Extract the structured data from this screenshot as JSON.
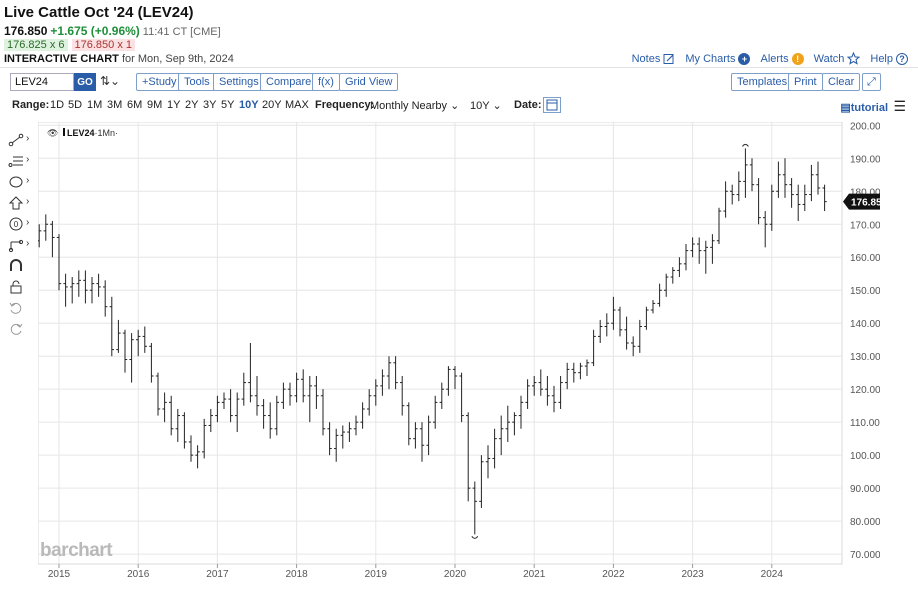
{
  "header": {
    "title": "Live Cattle Oct '24 (LEV24)",
    "last": "176.850",
    "change": "+1.675 (+0.96%)",
    "time": "11:41 CT [CME]",
    "bid": "176.825 x 6",
    "ask": "176.850 x 1",
    "interactive_label": "INTERACTIVE CHART",
    "interactive_for": "for Mon, Sep 9th, 2024"
  },
  "links": {
    "notes": "Notes",
    "mycharts": "My Charts",
    "alerts": "Alerts",
    "watch": "Watch",
    "help": "Help"
  },
  "toolbar": {
    "symbol": "LEV24",
    "go": "GO",
    "study": "+Study",
    "tools": "Tools",
    "settings": "Settings",
    "compare": "Compare",
    "fx": "f(x)",
    "gridview": "Grid View",
    "templates": "Templates",
    "print": "Print",
    "clear": "Clear"
  },
  "rangebar": {
    "range_label": "Range:",
    "ranges": [
      "1D",
      "5D",
      "1M",
      "3M",
      "6M",
      "9M",
      "1Y",
      "2Y",
      "3Y",
      "5Y",
      "10Y",
      "20Y",
      "MAX"
    ],
    "active_range": "10Y",
    "frequency_label": "Frequency:",
    "frequency_value": "Monthly Nearby",
    "period_value": "10Y",
    "date_label": "Date:",
    "tutorial": "tutorial"
  },
  "legend": {
    "symbol": "LEV24",
    "interval": "1Mn"
  },
  "watermark": "barchart",
  "colors": {
    "accent": "#2a5da8",
    "up": "#1f8f3a",
    "down": "#cc3333",
    "bars": "#222222",
    "grid": "#e6e6e6"
  },
  "chart_data": {
    "type": "ohlc",
    "title": "Live Cattle Oct '24 (LEV24)",
    "interval": "monthly",
    "x_tick_labels": [
      "2015",
      "2016",
      "2017",
      "2018",
      "2019",
      "2020",
      "2021",
      "2022",
      "2023",
      "2024"
    ],
    "y_tick_labels": [
      "70.000",
      "80.000",
      "90.000",
      "100.000",
      "110.000",
      "120.000",
      "130.000",
      "140.000",
      "150.000",
      "160.000",
      "170.000",
      "180.000",
      "190.000",
      "200.000"
    ],
    "ylim": [
      67,
      201
    ],
    "start": "2014-10",
    "last_price": 176.85,
    "last_price_label": "176.850",
    "monthly": [
      {
        "m": "2014-10",
        "o": 165,
        "h": 170,
        "l": 163,
        "c": 168
      },
      {
        "m": "2014-11",
        "o": 168,
        "h": 173,
        "l": 165,
        "c": 170
      },
      {
        "m": "2014-12",
        "o": 170,
        "h": 171,
        "l": 160,
        "c": 166
      },
      {
        "m": "2015-01",
        "o": 166,
        "h": 167,
        "l": 150,
        "c": 152
      },
      {
        "m": "2015-02",
        "o": 152,
        "h": 155,
        "l": 145,
        "c": 151
      },
      {
        "m": "2015-03",
        "o": 151,
        "h": 154,
        "l": 146,
        "c": 152
      },
      {
        "m": "2015-04",
        "o": 152,
        "h": 156,
        "l": 148,
        "c": 153
      },
      {
        "m": "2015-05",
        "o": 153,
        "h": 156,
        "l": 146,
        "c": 150
      },
      {
        "m": "2015-06",
        "o": 150,
        "h": 154,
        "l": 146,
        "c": 152
      },
      {
        "m": "2015-07",
        "o": 152,
        "h": 155,
        "l": 148,
        "c": 151
      },
      {
        "m": "2015-08",
        "o": 151,
        "h": 153,
        "l": 142,
        "c": 145
      },
      {
        "m": "2015-09",
        "o": 145,
        "h": 148,
        "l": 130,
        "c": 132
      },
      {
        "m": "2015-10",
        "o": 132,
        "h": 141,
        "l": 131,
        "c": 137
      },
      {
        "m": "2015-11",
        "o": 137,
        "h": 138,
        "l": 125,
        "c": 129
      },
      {
        "m": "2015-12",
        "o": 129,
        "h": 137,
        "l": 122,
        "c": 135
      },
      {
        "m": "2016-01",
        "o": 135,
        "h": 138,
        "l": 130,
        "c": 136
      },
      {
        "m": "2016-02",
        "o": 136,
        "h": 139,
        "l": 131,
        "c": 133
      },
      {
        "m": "2016-03",
        "o": 133,
        "h": 134,
        "l": 122,
        "c": 124
      },
      {
        "m": "2016-04",
        "o": 124,
        "h": 125,
        "l": 112,
        "c": 114
      },
      {
        "m": "2016-05",
        "o": 114,
        "h": 119,
        "l": 110,
        "c": 116
      },
      {
        "m": "2016-06",
        "o": 116,
        "h": 118,
        "l": 106,
        "c": 108
      },
      {
        "m": "2016-07",
        "o": 108,
        "h": 114,
        "l": 104,
        "c": 112
      },
      {
        "m": "2016-08",
        "o": 112,
        "h": 113,
        "l": 102,
        "c": 104
      },
      {
        "m": "2016-09",
        "o": 104,
        "h": 106,
        "l": 98,
        "c": 100
      },
      {
        "m": "2016-10",
        "o": 100,
        "h": 103,
        "l": 96,
        "c": 101
      },
      {
        "m": "2016-11",
        "o": 101,
        "h": 111,
        "l": 99,
        "c": 109
      },
      {
        "m": "2016-12",
        "o": 109,
        "h": 114,
        "l": 107,
        "c": 112
      },
      {
        "m": "2017-01",
        "o": 112,
        "h": 118,
        "l": 110,
        "c": 116
      },
      {
        "m": "2017-02",
        "o": 116,
        "h": 119,
        "l": 114,
        "c": 117
      },
      {
        "m": "2017-03",
        "o": 117,
        "h": 120,
        "l": 110,
        "c": 112
      },
      {
        "m": "2017-04",
        "o": 112,
        "h": 119,
        "l": 107,
        "c": 117
      },
      {
        "m": "2017-05",
        "o": 117,
        "h": 125,
        "l": 115,
        "c": 122
      },
      {
        "m": "2017-06",
        "o": 122,
        "h": 134,
        "l": 116,
        "c": 118
      },
      {
        "m": "2017-07",
        "o": 118,
        "h": 124,
        "l": 112,
        "c": 115
      },
      {
        "m": "2017-08",
        "o": 115,
        "h": 117,
        "l": 108,
        "c": 112
      },
      {
        "m": "2017-09",
        "o": 112,
        "h": 116,
        "l": 105,
        "c": 108
      },
      {
        "m": "2017-10",
        "o": 108,
        "h": 118,
        "l": 106,
        "c": 116
      },
      {
        "m": "2017-11",
        "o": 116,
        "h": 122,
        "l": 114,
        "c": 120
      },
      {
        "m": "2017-12",
        "o": 120,
        "h": 122,
        "l": 115,
        "c": 118
      },
      {
        "m": "2018-01",
        "o": 118,
        "h": 125,
        "l": 116,
        "c": 123
      },
      {
        "m": "2018-02",
        "o": 123,
        "h": 126,
        "l": 116,
        "c": 118
      },
      {
        "m": "2018-03",
        "o": 118,
        "h": 124,
        "l": 110,
        "c": 121
      },
      {
        "m": "2018-04",
        "o": 121,
        "h": 124,
        "l": 114,
        "c": 118
      },
      {
        "m": "2018-05",
        "o": 118,
        "h": 120,
        "l": 106,
        "c": 108
      },
      {
        "m": "2018-06",
        "o": 108,
        "h": 110,
        "l": 100,
        "c": 102
      },
      {
        "m": "2018-07",
        "o": 102,
        "h": 108,
        "l": 98,
        "c": 106
      },
      {
        "m": "2018-08",
        "o": 106,
        "h": 109,
        "l": 102,
        "c": 107
      },
      {
        "m": "2018-09",
        "o": 107,
        "h": 110,
        "l": 104,
        "c": 108
      },
      {
        "m": "2018-10",
        "o": 108,
        "h": 112,
        "l": 106,
        "c": 110
      },
      {
        "m": "2018-11",
        "o": 110,
        "h": 116,
        "l": 108,
        "c": 114
      },
      {
        "m": "2018-12",
        "o": 114,
        "h": 120,
        "l": 112,
        "c": 118
      },
      {
        "m": "2019-01",
        "o": 118,
        "h": 123,
        "l": 115,
        "c": 121
      },
      {
        "m": "2019-02",
        "o": 121,
        "h": 126,
        "l": 118,
        "c": 124
      },
      {
        "m": "2019-03",
        "o": 124,
        "h": 130,
        "l": 120,
        "c": 128
      },
      {
        "m": "2019-04",
        "o": 128,
        "h": 130,
        "l": 120,
        "c": 122
      },
      {
        "m": "2019-05",
        "o": 122,
        "h": 124,
        "l": 112,
        "c": 115
      },
      {
        "m": "2019-06",
        "o": 115,
        "h": 116,
        "l": 103,
        "c": 105
      },
      {
        "m": "2019-07",
        "o": 105,
        "h": 110,
        "l": 102,
        "c": 108
      },
      {
        "m": "2019-08",
        "o": 108,
        "h": 110,
        "l": 98,
        "c": 103
      },
      {
        "m": "2019-09",
        "o": 103,
        "h": 112,
        "l": 100,
        "c": 110
      },
      {
        "m": "2019-10",
        "o": 110,
        "h": 118,
        "l": 108,
        "c": 116
      },
      {
        "m": "2019-11",
        "o": 116,
        "h": 122,
        "l": 114,
        "c": 120
      },
      {
        "m": "2019-12",
        "o": 120,
        "h": 127,
        "l": 118,
        "c": 126
      },
      {
        "m": "2020-01",
        "o": 126,
        "h": 127,
        "l": 120,
        "c": 124
      },
      {
        "m": "2020-02",
        "o": 124,
        "h": 125,
        "l": 110,
        "c": 112
      },
      {
        "m": "2020-03",
        "o": 112,
        "h": 113,
        "l": 86,
        "c": 90
      },
      {
        "m": "2020-04",
        "o": 90,
        "h": 92,
        "l": 76,
        "c": 86
      },
      {
        "m": "2020-05",
        "o": 86,
        "h": 100,
        "l": 84,
        "c": 98
      },
      {
        "m": "2020-06",
        "o": 98,
        "h": 103,
        "l": 93,
        "c": 99
      },
      {
        "m": "2020-07",
        "o": 99,
        "h": 108,
        "l": 96,
        "c": 105
      },
      {
        "m": "2020-08",
        "o": 105,
        "h": 112,
        "l": 100,
        "c": 108
      },
      {
        "m": "2020-09",
        "o": 108,
        "h": 115,
        "l": 104,
        "c": 110
      },
      {
        "m": "2020-10",
        "o": 110,
        "h": 113,
        "l": 106,
        "c": 112
      },
      {
        "m": "2020-11",
        "o": 112,
        "h": 118,
        "l": 108,
        "c": 116
      },
      {
        "m": "2020-12",
        "o": 116,
        "h": 123,
        "l": 114,
        "c": 121
      },
      {
        "m": "2021-01",
        "o": 121,
        "h": 124,
        "l": 118,
        "c": 122
      },
      {
        "m": "2021-02",
        "o": 122,
        "h": 126,
        "l": 118,
        "c": 120
      },
      {
        "m": "2021-03",
        "o": 120,
        "h": 124,
        "l": 115,
        "c": 118
      },
      {
        "m": "2021-04",
        "o": 118,
        "h": 121,
        "l": 113,
        "c": 116
      },
      {
        "m": "2021-05",
        "o": 116,
        "h": 124,
        "l": 114,
        "c": 122
      },
      {
        "m": "2021-06",
        "o": 122,
        "h": 128,
        "l": 120,
        "c": 126
      },
      {
        "m": "2021-07",
        "o": 126,
        "h": 128,
        "l": 122,
        "c": 125
      },
      {
        "m": "2021-08",
        "o": 125,
        "h": 128,
        "l": 123,
        "c": 127
      },
      {
        "m": "2021-09",
        "o": 127,
        "h": 129,
        "l": 124,
        "c": 128
      },
      {
        "m": "2021-10",
        "o": 128,
        "h": 138,
        "l": 127,
        "c": 136
      },
      {
        "m": "2021-11",
        "o": 136,
        "h": 141,
        "l": 134,
        "c": 139
      },
      {
        "m": "2021-12",
        "o": 139,
        "h": 143,
        "l": 136,
        "c": 140
      },
      {
        "m": "2022-01",
        "o": 140,
        "h": 148,
        "l": 138,
        "c": 144
      },
      {
        "m": "2022-02",
        "o": 144,
        "h": 145,
        "l": 136,
        "c": 138
      },
      {
        "m": "2022-03",
        "o": 138,
        "h": 142,
        "l": 132,
        "c": 134
      },
      {
        "m": "2022-04",
        "o": 134,
        "h": 136,
        "l": 130,
        "c": 133
      },
      {
        "m": "2022-05",
        "o": 133,
        "h": 141,
        "l": 131,
        "c": 139
      },
      {
        "m": "2022-06",
        "o": 139,
        "h": 145,
        "l": 138,
        "c": 144
      },
      {
        "m": "2022-07",
        "o": 144,
        "h": 147,
        "l": 143,
        "c": 146
      },
      {
        "m": "2022-08",
        "o": 146,
        "h": 152,
        "l": 145,
        "c": 150
      },
      {
        "m": "2022-09",
        "o": 150,
        "h": 155,
        "l": 148,
        "c": 154
      },
      {
        "m": "2022-10",
        "o": 154,
        "h": 157,
        "l": 152,
        "c": 156
      },
      {
        "m": "2022-11",
        "o": 156,
        "h": 160,
        "l": 154,
        "c": 158
      },
      {
        "m": "2022-12",
        "o": 158,
        "h": 164,
        "l": 156,
        "c": 162
      },
      {
        "m": "2023-01",
        "o": 162,
        "h": 166,
        "l": 160,
        "c": 164
      },
      {
        "m": "2023-02",
        "o": 164,
        "h": 166,
        "l": 158,
        "c": 162
      },
      {
        "m": "2023-03",
        "o": 162,
        "h": 165,
        "l": 155,
        "c": 163
      },
      {
        "m": "2023-04",
        "o": 163,
        "h": 167,
        "l": 158,
        "c": 165
      },
      {
        "m": "2023-05",
        "o": 165,
        "h": 175,
        "l": 164,
        "c": 174
      },
      {
        "m": "2023-06",
        "o": 174,
        "h": 183,
        "l": 172,
        "c": 180
      },
      {
        "m": "2023-07",
        "o": 180,
        "h": 182,
        "l": 176,
        "c": 179
      },
      {
        "m": "2023-08",
        "o": 179,
        "h": 186,
        "l": 177,
        "c": 183
      },
      {
        "m": "2023-09",
        "o": 183,
        "h": 193,
        "l": 178,
        "c": 188
      },
      {
        "m": "2023-10",
        "o": 188,
        "h": 190,
        "l": 180,
        "c": 182
      },
      {
        "m": "2023-11",
        "o": 182,
        "h": 184,
        "l": 170,
        "c": 172
      },
      {
        "m": "2023-12",
        "o": 172,
        "h": 174,
        "l": 163,
        "c": 170
      },
      {
        "m": "2024-01",
        "o": 170,
        "h": 182,
        "l": 168,
        "c": 180
      },
      {
        "m": "2024-02",
        "o": 180,
        "h": 189,
        "l": 178,
        "c": 185
      },
      {
        "m": "2024-03",
        "o": 185,
        "h": 190,
        "l": 178,
        "c": 182
      },
      {
        "m": "2024-04",
        "o": 182,
        "h": 184,
        "l": 175,
        "c": 179
      },
      {
        "m": "2024-05",
        "o": 179,
        "h": 182,
        "l": 171,
        "c": 176
      },
      {
        "m": "2024-06",
        "o": 176,
        "h": 182,
        "l": 174,
        "c": 179
      },
      {
        "m": "2024-07",
        "o": 179,
        "h": 188,
        "l": 177,
        "c": 185
      },
      {
        "m": "2024-08",
        "o": 185,
        "h": 189,
        "l": 179,
        "c": 181
      },
      {
        "m": "2024-09",
        "o": 181,
        "h": 182,
        "l": 174,
        "c": 176.85
      }
    ]
  }
}
